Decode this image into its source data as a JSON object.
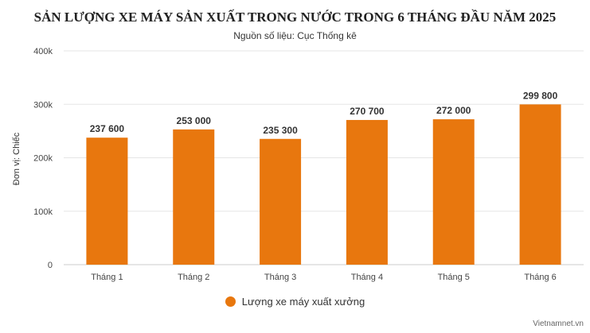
{
  "title": "SẢN LƯỢNG XE MÁY SẢN XUẤT TRONG NƯỚC TRONG 6 THÁNG ĐẦU NĂM 2025",
  "subtitle": "Nguồn số liệu: Cục Thống kê",
  "credit": "Vietnamnet.vn",
  "colors": {
    "bar": "#e8770e",
    "grid": "#e6e6e6",
    "label": "#333333"
  },
  "chart_data": {
    "type": "bar",
    "categories": [
      "Tháng 1",
      "Tháng 2",
      "Tháng 3",
      "Tháng 4",
      "Tháng 5",
      "Tháng 6"
    ],
    "series": [
      {
        "name": "Lượng xe máy xuất xưởng",
        "values": [
          237600,
          253000,
          235300,
          270700,
          272000,
          299800
        ]
      }
    ],
    "data_labels": [
      "237 600",
      "253 000",
      "235 300",
      "270 700",
      "272 000",
      "299 800"
    ],
    "ylabel": "Đơn vị: Chiếc",
    "ylim": [
      0,
      400000
    ],
    "yticks": [
      0,
      100000,
      200000,
      300000,
      400000
    ],
    "ytick_labels": [
      "0",
      "100k",
      "200k",
      "300k",
      "400k"
    ],
    "grid": true,
    "legend_position": "bottom-center"
  }
}
